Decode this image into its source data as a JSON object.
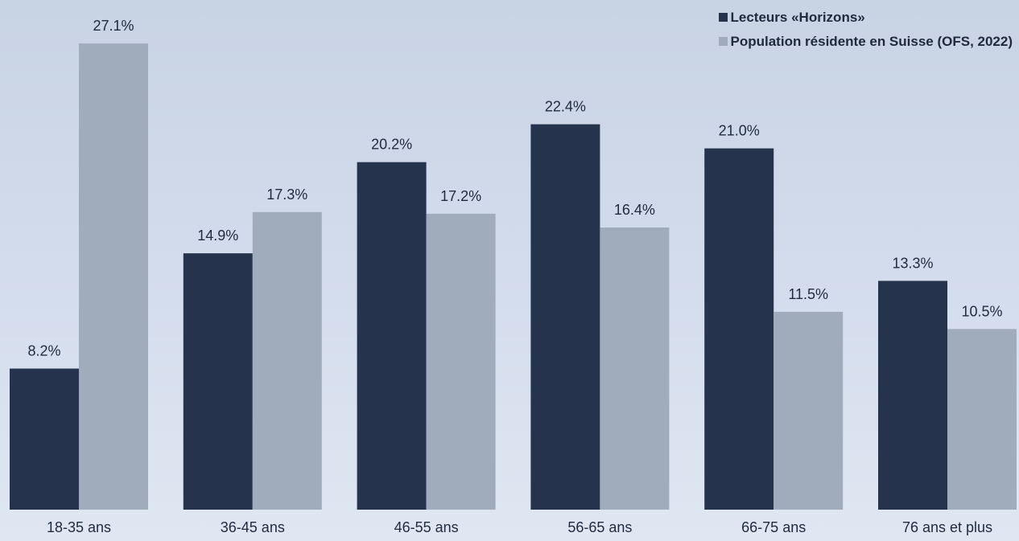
{
  "chart_data": {
    "type": "bar",
    "title": "",
    "xlabel": "",
    "ylabel": "",
    "categories": [
      "18-35 ans",
      "36-45 ans",
      "46-55 ans",
      "56-65 ans",
      "66-75 ans",
      "76 ans et plus"
    ],
    "series": [
      {
        "name": "Lecteurs «Horizons»",
        "color": "#25334d",
        "values": [
          8.2,
          14.9,
          20.2,
          22.4,
          21.0,
          13.3
        ],
        "labels": [
          "8.2%",
          "14.9%",
          "20.2%",
          "22.4%",
          "21.0%",
          "13.3%"
        ]
      },
      {
        "name": "Population résidente en Suisse (OFS, 2022)",
        "color": "#a0abbb",
        "values": [
          27.1,
          17.3,
          17.2,
          16.4,
          11.5,
          10.5
        ],
        "labels": [
          "27.1%",
          "17.3%",
          "17.2%",
          "16.4%",
          "11.5%",
          "10.5%"
        ]
      }
    ],
    "ylim": [
      0,
      30
    ],
    "grid": false,
    "legend_position": "top-right"
  }
}
